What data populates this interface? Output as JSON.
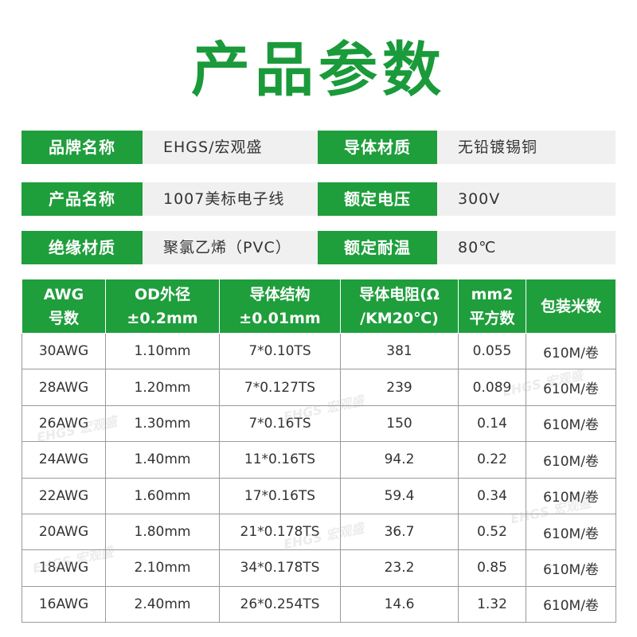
{
  "title": "产品参数",
  "params": [
    {
      "label": "品牌名称",
      "value": "EHGS/宏观盛",
      "label2": "导体材质",
      "value2": "无铅镀锡铜"
    },
    {
      "label": "产品名称",
      "value": "1007美标电子线",
      "label2": "额定电压",
      "value2": "300V"
    },
    {
      "label": "绝缘材质",
      "value": "聚氯乙烯（PVC）",
      "label2": "额定耐温",
      "value2": "80℃"
    }
  ],
  "table": {
    "headers": [
      [
        "AWG",
        "号数"
      ],
      [
        "OD外径",
        "±0.2mm"
      ],
      [
        "导体结构",
        "±0.01mm"
      ],
      [
        "导体电阻(Ω",
        "/KM20℃)"
      ],
      [
        "mm2",
        "平方数"
      ],
      [
        "包装米数",
        ""
      ]
    ],
    "rows": [
      [
        "30AWG",
        "1.10mm",
        "7*0.10TS",
        "381",
        "0.055",
        "610M/卷"
      ],
      [
        "28AWG",
        "1.20mm",
        "7*0.127TS",
        "239",
        "0.089",
        "610M/卷"
      ],
      [
        "26AWG",
        "1.30mm",
        "7*0.16TS",
        "150",
        "0.14",
        "610M/卷"
      ],
      [
        "24AWG",
        "1.40mm",
        "11*0.16TS",
        "94.2",
        "0.22",
        "610M/卷"
      ],
      [
        "22AWG",
        "1.60mm",
        "17*0.16TS",
        "59.4",
        "0.34",
        "610M/卷"
      ],
      [
        "20AWG",
        "1.80mm",
        "21*0.178TS",
        "36.7",
        "0.52",
        "610M/卷"
      ],
      [
        "18AWG",
        "2.10mm",
        "34*0.178TS",
        "23.2",
        "0.85",
        "610M/卷"
      ],
      [
        "16AWG",
        "2.40mm",
        "26*0.254TS",
        "14.6",
        "1.32",
        "610M/卷"
      ]
    ]
  },
  "watermark": "EHGS 宏观盛"
}
